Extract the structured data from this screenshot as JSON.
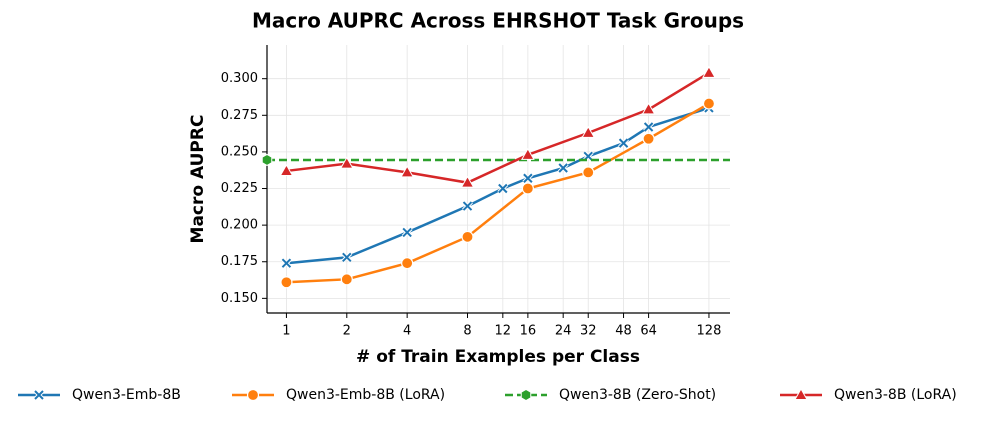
{
  "chart_data": {
    "type": "line",
    "title": "Macro AUPRC Across EHRSHOT Task Groups",
    "xlabel": "# of Train Examples per Class",
    "ylabel": "Macro AUPRC",
    "xscale": "log2",
    "xlim": [
      0.8,
      163
    ],
    "ylim": [
      0.14,
      0.323
    ],
    "xticks": [
      1,
      2,
      4,
      8,
      12,
      16,
      24,
      32,
      48,
      64,
      128
    ],
    "yticks": [
      {
        "value": 0.15,
        "label": "0.150"
      },
      {
        "value": 0.175,
        "label": "0.175"
      },
      {
        "value": 0.2,
        "label": "0.200"
      },
      {
        "value": 0.225,
        "label": "0.225"
      },
      {
        "value": 0.25,
        "label": "0.250"
      },
      {
        "value": 0.275,
        "label": "0.275"
      },
      {
        "value": 0.3,
        "label": "0.300"
      }
    ],
    "grid": true,
    "legend": "bottom",
    "series": [
      {
        "name": "Qwen3-Emb-8B",
        "color": "#1f77b4",
        "marker": "x",
        "x": [
          1,
          2,
          4,
          8,
          12,
          16,
          24,
          32,
          48,
          64,
          128
        ],
        "values": [
          0.174,
          0.178,
          0.195,
          0.213,
          0.225,
          0.232,
          0.239,
          0.247,
          0.256,
          0.267,
          0.28
        ]
      },
      {
        "name": "Qwen3-Emb-8B (LoRA)",
        "color": "#ff7f0e",
        "marker": "circle",
        "x": [
          1,
          2,
          4,
          8,
          16,
          32,
          64,
          128
        ],
        "values": [
          0.161,
          0.163,
          0.174,
          0.192,
          0.225,
          0.236,
          0.259,
          0.283
        ]
      },
      {
        "name": "Qwen3-8B (Zero-Shot)",
        "color": "#2ca02c",
        "marker": "hexagon",
        "dashed": true,
        "value": 0.2445
      },
      {
        "name": "Qwen3-8B (LoRA)",
        "color": "#d62728",
        "marker": "triangle",
        "x": [
          1,
          2,
          4,
          8,
          16,
          32,
          64,
          128
        ],
        "values": [
          0.237,
          0.242,
          0.236,
          0.229,
          0.248,
          0.263,
          0.279,
          0.304
        ]
      }
    ]
  }
}
